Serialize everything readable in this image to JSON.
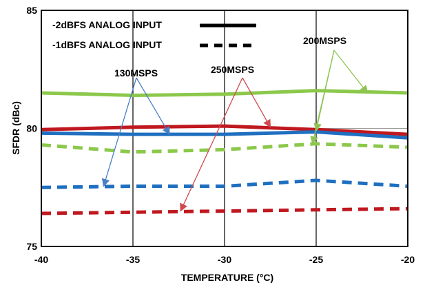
{
  "chart_data": {
    "type": "line",
    "xlabel": "TEMPERATURE (°C)",
    "ylabel": "SFDR (dBc)",
    "xlim": [
      -40,
      -20
    ],
    "ylim": [
      75,
      85
    ],
    "x_ticks": [
      -40,
      -35,
      -30,
      -25,
      -20
    ],
    "y_ticks": [
      75,
      80,
      85
    ],
    "grid": "vertical",
    "legend": {
      "position": "top-left",
      "entries": [
        {
          "label": "-2dBFS ANALOG INPUT",
          "style": "solid"
        },
        {
          "label": "-1dBFS ANALOG INPUT",
          "style": "dashed"
        }
      ]
    },
    "colors": {
      "130MSPS": "#1f6fc0",
      "200MSPS": "#8cc84b",
      "250MSPS": "#c0181f"
    },
    "series": [
      {
        "rate": "200MSPS",
        "input": "-2dBFS",
        "style": "solid",
        "x": [
          -40,
          -35,
          -30,
          -25,
          -20
        ],
        "y": [
          81.5,
          81.4,
          81.45,
          81.6,
          81.5
        ]
      },
      {
        "rate": "250MSPS",
        "input": "-2dBFS",
        "style": "solid",
        "x": [
          -40,
          -35,
          -30,
          -25,
          -20
        ],
        "y": [
          79.95,
          80.05,
          80.1,
          79.95,
          79.75
        ]
      },
      {
        "rate": "130MSPS",
        "input": "-2dBFS",
        "style": "solid",
        "x": [
          -40,
          -35,
          -30,
          -25,
          -20
        ],
        "y": [
          79.8,
          79.75,
          79.75,
          79.85,
          79.6
        ]
      },
      {
        "rate": "200MSPS",
        "input": "-1dBFS",
        "style": "dashed",
        "x": [
          -40,
          -35,
          -30,
          -25,
          -20
        ],
        "y": [
          79.3,
          79.0,
          79.1,
          79.35,
          79.2
        ]
      },
      {
        "rate": "130MSPS",
        "input": "-1dBFS",
        "style": "dashed",
        "x": [
          -40,
          -35,
          -30,
          -25,
          -20
        ],
        "y": [
          77.5,
          77.55,
          77.55,
          77.8,
          77.55
        ]
      },
      {
        "rate": "250MSPS",
        "input": "-1dBFS",
        "style": "dashed",
        "x": [
          -40,
          -35,
          -30,
          -25,
          -20
        ],
        "y": [
          76.4,
          76.45,
          76.5,
          76.55,
          76.6
        ]
      }
    ],
    "annotations": [
      {
        "text": "130MSPS",
        "targets": [
          {
            "x": -33.0,
            "y": 79.75
          },
          {
            "x": -36.6,
            "y": 77.55
          }
        ]
      },
      {
        "text": "250MSPS",
        "targets": [
          {
            "x": -27.5,
            "y": 80.05
          },
          {
            "x": -32.4,
            "y": 76.5
          }
        ]
      },
      {
        "text": "200MSPS",
        "targets": [
          {
            "x": -22.2,
            "y": 81.5
          },
          {
            "x": -25.0,
            "y": 79.9
          },
          {
            "x": -25.2,
            "y": 79.35
          }
        ]
      }
    ]
  }
}
